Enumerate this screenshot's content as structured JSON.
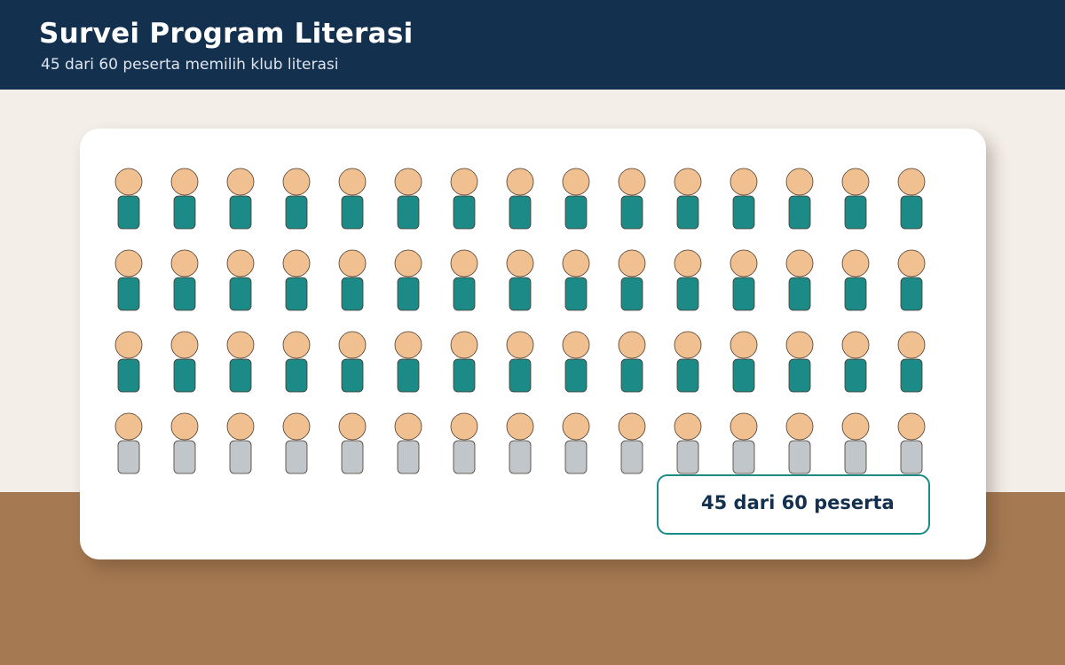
{
  "header": {
    "title": "Survei Program Literasi",
    "subtitle": "45 dari 60 peserta memilih klub literasi"
  },
  "chart_data": {
    "type": "pictograph",
    "total": 60,
    "selected": 45,
    "rows": 4,
    "columns": 15,
    "icon": "person-icon",
    "callout": "45 dari 60 peserta"
  },
  "colors": {
    "header_bg": "#14304f",
    "highlight": "#1c8a86",
    "muted": "#c0c6ca",
    "head": "#f0c090",
    "outline": "#4a3a2e"
  }
}
